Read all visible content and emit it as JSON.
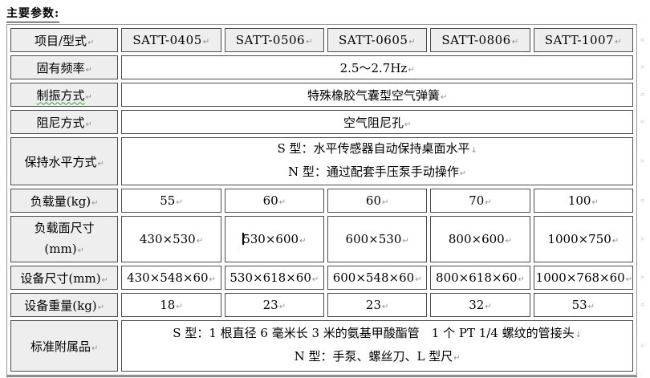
{
  "title": "主要参数:",
  "marks": {
    "cell_end": "↵",
    "line_break": "↓",
    "row_end": "¤"
  },
  "colors": {
    "label_cell_bg": "#eeeeee",
    "cell_border": "#4c4c4c",
    "outer_border": "#9a9a9a",
    "spellcheck_underline": "#36a336",
    "format_mark": "#8f8f8f",
    "caret": "#000000"
  },
  "table": {
    "col_header_label": "项目/型式",
    "models": [
      "SATT-0405",
      "SATT-0506",
      "SATT-0605",
      "SATT-0806",
      "SATT-1007"
    ],
    "rows": [
      {
        "label": "固有频率",
        "value": "2.5～2.7Hz"
      },
      {
        "label": "制振方式",
        "value": "特殊橡胶气囊型空气弹簧"
      },
      {
        "label": "阻尼方式",
        "value": "空气阻尼孔"
      },
      {
        "label": "保持水平方式",
        "line1": "S 型：水平传感器自动保持桌面水平",
        "line2": "N 型：通过配套手压泵手动操作"
      },
      {
        "label": "负载量(kg)",
        "cells": [
          "55",
          "60",
          "60",
          "70",
          "100"
        ]
      },
      {
        "label_line1": "负载面尺寸",
        "label_line2": "(mm)",
        "cells": [
          "430×530",
          "530×600",
          "600×530",
          "800×600",
          "1000×750"
        ]
      },
      {
        "label": "设备尺寸(mm)",
        "cells": [
          "430×548×60",
          "530×618×60",
          "600×548×60",
          "800×618×60",
          "1000×768×60"
        ]
      },
      {
        "label": "设备重量(kg)",
        "cells": [
          "18",
          "23",
          "23",
          "32",
          "53"
        ]
      },
      {
        "label": "标准附属品",
        "line1": "S 型：1 根直径 6 毫米长 3 米的氨基甲酸酯管　1 个 PT 1/4 螺纹的管接头",
        "line2": "N 型：手泵、螺丝刀、L 型尺"
      }
    ]
  }
}
